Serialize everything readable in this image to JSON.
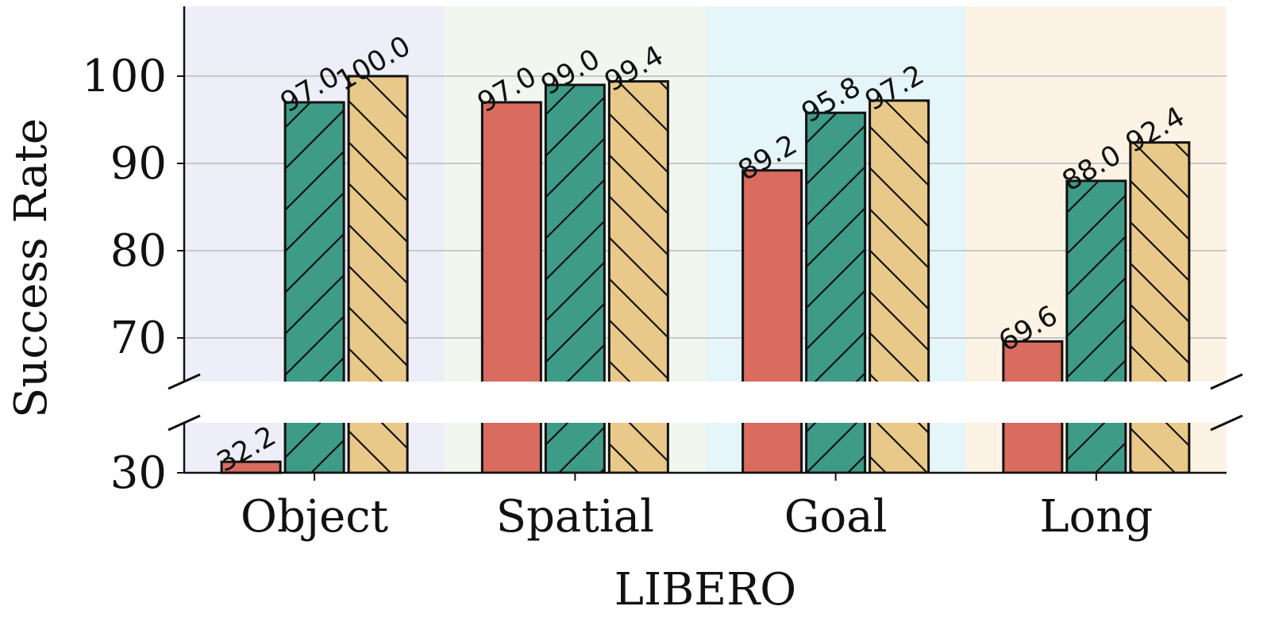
{
  "chart_data": {
    "type": "bar",
    "title": "",
    "xlabel": "LIBERO",
    "ylabel": "Success Rate",
    "categories": [
      "Object",
      "Spatial",
      "Goal",
      "Long"
    ],
    "series": [
      {
        "values": [
          32.2,
          97.0,
          89.2,
          69.6
        ],
        "color": "#d96c5f",
        "hatch": "none"
      },
      {
        "values": [
          97.0,
          99.0,
          95.8,
          88.0
        ],
        "color": "#3e9b87",
        "hatch": "forward"
      },
      {
        "values": [
          100.0,
          99.4,
          97.2,
          92.4
        ],
        "color": "#e9c98a",
        "hatch": "backward"
      }
    ],
    "data_labels": [
      [
        "32.2",
        "97.0",
        "89.2",
        "69.6"
      ],
      [
        "97.0",
        "99.0",
        "95.8",
        "88.0"
      ],
      [
        "100.0",
        "99.4",
        "97.2",
        "92.4"
      ]
    ],
    "ylim_upper": [
      65,
      108
    ],
    "ylim_lower": [
      30,
      40
    ],
    "yticks_upper": [
      "70",
      "80",
      "90",
      "100"
    ],
    "yticks_lower": [
      "30"
    ],
    "broken_axis": true,
    "grid": "horizontal",
    "category_backgrounds": [
      "#eeeef8",
      "#f1f7ee",
      "#e5f6fa",
      "#fdf3e4"
    ]
  }
}
